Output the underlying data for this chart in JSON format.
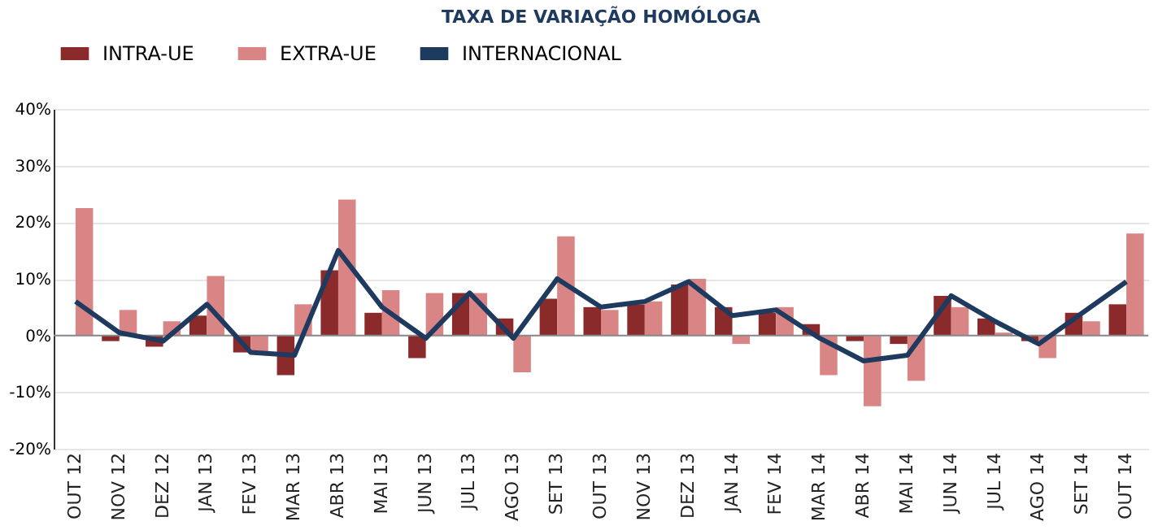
{
  "chart_data": {
    "type": "bar",
    "title": "TAXA DE VARIAÇÃO HOMÓLOGA",
    "categories": [
      "OUT 12",
      "NOV 12",
      "DEZ 12",
      "JAN 13",
      "FEV 13",
      "MAR 13",
      "ABR 13",
      "MAI 13",
      "JUN 13",
      "JUL 13",
      "AGO 13",
      "SET 13",
      "OUT 13",
      "NOV 13",
      "DEZ 13",
      "JAN 14",
      "FEV 14",
      "MAR 14",
      "ABR 14",
      "MAI 14",
      "JUN 14",
      "JUL 14",
      "AGO 14",
      "SET 14",
      "OUT 14"
    ],
    "series": [
      {
        "name": "INTRA-UE",
        "color": "#8b2a2a",
        "values": [
          null,
          -1,
          -2,
          3.5,
          -3,
          -7,
          11.5,
          4,
          -4,
          7.5,
          3,
          6.5,
          5,
          5.5,
          9,
          5,
          4,
          2,
          -1,
          -1.5,
          7,
          3,
          -1,
          4,
          5.5
        ]
      },
      {
        "name": "EXTRA-UE",
        "color": "#d98585",
        "values": [
          22.5,
          4.5,
          2.5,
          10.5,
          -3,
          5.5,
          24,
          8,
          7.5,
          7.5,
          -6.5,
          17.5,
          4.5,
          6,
          10,
          -1.5,
          5,
          -7,
          -12.5,
          -8,
          5,
          0.5,
          -4,
          2.5,
          18
        ]
      },
      {
        "name": "INTERNACIONAL",
        "type": "line",
        "color": "#1f3a5f",
        "values": [
          6,
          0.5,
          -1,
          5.5,
          -3,
          -3.5,
          15,
          5,
          -0.5,
          7.5,
          -0.5,
          10,
          5,
          6,
          9.5,
          3.5,
          4.5,
          -0.5,
          -4.5,
          -3.5,
          7,
          2.5,
          -1.5,
          4,
          9.5
        ]
      }
    ],
    "ylim": [
      -20,
      40
    ],
    "yticks": [
      {
        "value": -20,
        "label": "-20%"
      },
      {
        "value": -10,
        "label": "-10%"
      },
      {
        "value": 0,
        "label": "0%"
      },
      {
        "value": 10,
        "label": "10%"
      },
      {
        "value": 20,
        "label": "20%"
      },
      {
        "value": 30,
        "label": "30%"
      },
      {
        "value": 40,
        "label": "40%"
      }
    ],
    "grid": "y",
    "legend": "top"
  }
}
